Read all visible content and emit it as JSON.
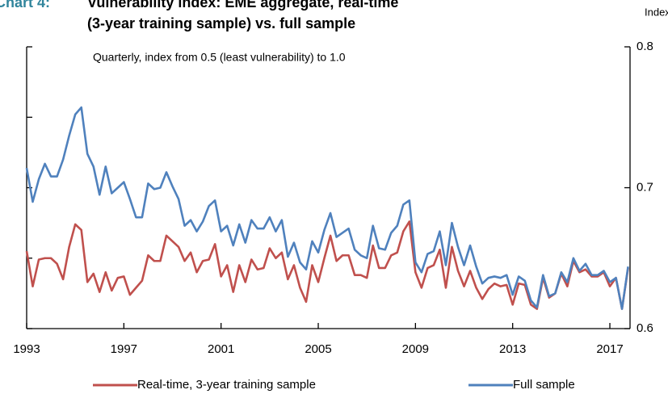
{
  "chart_data": {
    "type": "line",
    "chart_label": "Chart 4:",
    "title": [
      "Vulnerability index: EME aggregate, real-time",
      "(3-year training sample) vs. full sample"
    ],
    "y_axis_label": "Index",
    "subtitle": "Quarterly, index from 0.5 (least vulnerability) to 1.0",
    "x": [
      1993,
      1993.25,
      1993.5,
      1993.75,
      1994,
      1994.25,
      1994.5,
      1994.75,
      1995,
      1995.25,
      1995.5,
      1995.75,
      1996,
      1996.25,
      1996.5,
      1996.75,
      1997,
      1997.25,
      1997.5,
      1997.75,
      1998,
      1998.25,
      1998.5,
      1998.75,
      1999,
      1999.25,
      1999.5,
      1999.75,
      2000,
      2000.25,
      2000.5,
      2000.75,
      2001,
      2001.25,
      2001.5,
      2001.75,
      2002,
      2002.25,
      2002.5,
      2002.75,
      2003,
      2003.25,
      2003.5,
      2003.75,
      2004,
      2004.25,
      2004.5,
      2004.75,
      2005,
      2005.25,
      2005.5,
      2005.75,
      2006,
      2006.25,
      2006.5,
      2006.75,
      2007,
      2007.25,
      2007.5,
      2007.75,
      2008,
      2008.25,
      2008.5,
      2008.75,
      2009,
      2009.25,
      2009.5,
      2009.75,
      2010,
      2010.25,
      2010.5,
      2010.75,
      2011,
      2011.25,
      2011.5,
      2011.75,
      2012,
      2012.25,
      2012.5,
      2012.75,
      2013,
      2013.25,
      2013.5,
      2013.75,
      2014,
      2014.25,
      2014.5,
      2014.75,
      2015,
      2015.25,
      2015.5,
      2015.75,
      2016,
      2016.25,
      2016.5,
      2016.75,
      2017,
      2017.25,
      2017.5,
      2017.75
    ],
    "series": [
      {
        "name": "Real-time, 3-year training sample",
        "color": "#c0504d",
        "values": [
          0.655,
          0.63,
          0.649,
          0.65,
          0.65,
          0.646,
          0.635,
          0.658,
          0.674,
          0.67,
          0.633,
          0.639,
          0.626,
          0.64,
          0.627,
          0.636,
          0.637,
          0.624,
          0.629,
          0.634,
          0.652,
          0.648,
          0.648,
          0.666,
          0.662,
          0.658,
          0.648,
          0.654,
          0.64,
          0.648,
          0.649,
          0.66,
          0.637,
          0.645,
          0.626,
          0.645,
          0.633,
          0.649,
          0.642,
          0.643,
          0.657,
          0.65,
          0.654,
          0.635,
          0.645,
          0.629,
          0.619,
          0.645,
          0.633,
          0.65,
          0.666,
          0.648,
          0.652,
          0.652,
          0.638,
          0.638,
          0.636,
          0.659,
          0.643,
          0.643,
          0.652,
          0.654,
          0.669,
          0.676,
          0.64,
          0.629,
          0.643,
          0.645,
          0.656,
          0.629,
          0.658,
          0.641,
          0.63,
          0.641,
          0.629,
          0.621,
          0.628,
          0.632,
          0.63,
          0.631,
          0.617,
          0.632,
          0.631,
          0.617,
          0.614,
          0.636,
          0.622,
          0.625,
          0.639,
          0.63,
          0.648,
          0.64,
          0.642,
          0.637,
          0.637,
          0.64,
          0.63,
          0.636,
          0.614,
          0.643
        ]
      },
      {
        "name": "Full sample",
        "color": "#4f81bd",
        "values": [
          0.714,
          0.69,
          0.706,
          0.717,
          0.708,
          0.708,
          0.72,
          0.737,
          0.752,
          0.757,
          0.724,
          0.715,
          0.695,
          0.715,
          0.696,
          0.7,
          0.704,
          0.692,
          0.679,
          0.679,
          0.703,
          0.699,
          0.7,
          0.711,
          0.701,
          0.692,
          0.673,
          0.677,
          0.669,
          0.676,
          0.687,
          0.691,
          0.669,
          0.673,
          0.659,
          0.674,
          0.661,
          0.677,
          0.671,
          0.671,
          0.679,
          0.669,
          0.677,
          0.651,
          0.661,
          0.647,
          0.642,
          0.662,
          0.654,
          0.67,
          0.682,
          0.665,
          0.668,
          0.671,
          0.656,
          0.652,
          0.65,
          0.673,
          0.657,
          0.656,
          0.668,
          0.673,
          0.688,
          0.691,
          0.647,
          0.64,
          0.653,
          0.655,
          0.669,
          0.645,
          0.675,
          0.658,
          0.645,
          0.659,
          0.644,
          0.632,
          0.636,
          0.637,
          0.636,
          0.638,
          0.624,
          0.637,
          0.634,
          0.62,
          0.615,
          0.638,
          0.623,
          0.625,
          0.64,
          0.633,
          0.65,
          0.641,
          0.646,
          0.638,
          0.638,
          0.641,
          0.633,
          0.636,
          0.614,
          0.644
        ]
      }
    ],
    "xlim": [
      1993,
      2017.83
    ],
    "xticks": [
      1993,
      1997,
      2001,
      2005,
      2009,
      2013,
      2017
    ],
    "ylim": [
      0.6,
      0.8
    ],
    "yticks": [
      0.6,
      0.7,
      0.8
    ],
    "y_minor_ticks": [
      0.65,
      0.75
    ],
    "chart_label_color": "#31859c"
  }
}
